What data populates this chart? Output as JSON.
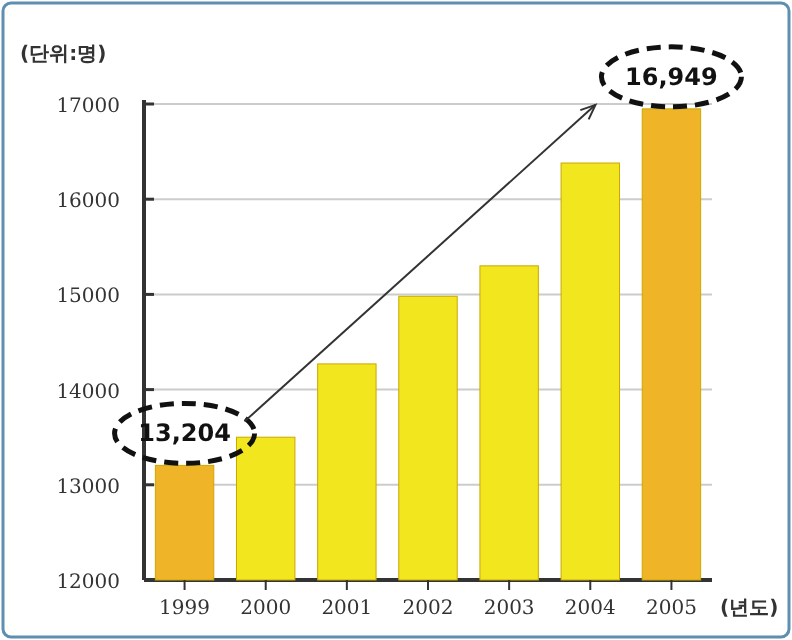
{
  "chart_data": {
    "type": "bar",
    "ylabel": "(단위:명)",
    "xlabel": "(년도)",
    "categories": [
      "1999",
      "2000",
      "2001",
      "2002",
      "2003",
      "2004",
      "2005"
    ],
    "values": [
      13204,
      13500,
      14270,
      14980,
      15300,
      16380,
      16949
    ],
    "colors": [
      "#f0b428",
      "#f2e61e",
      "#f2e61e",
      "#f2e61e",
      "#f2e61e",
      "#f2e61e",
      "#f0b428"
    ],
    "value_labels": [
      "13,204",
      null,
      null,
      null,
      null,
      null,
      "16,949"
    ],
    "ylim": [
      12000,
      17000
    ],
    "yticks": [
      12000,
      13000,
      14000,
      15000,
      16000,
      17000
    ],
    "grid": "y"
  }
}
